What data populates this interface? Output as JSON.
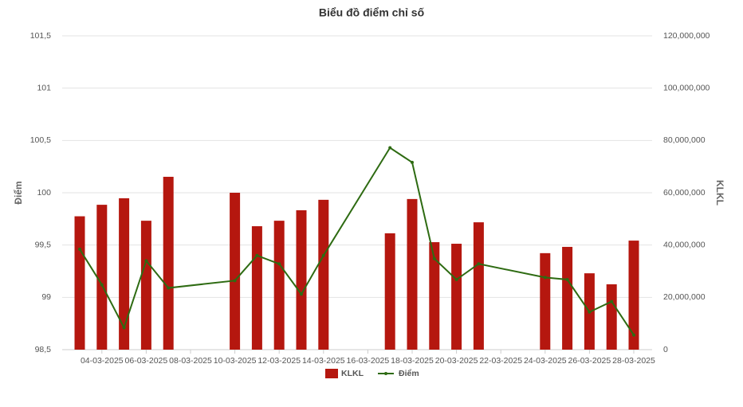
{
  "chart_data": {
    "type": "combo",
    "title": "Biểu đồ điểm chỉ số",
    "ylabel": "Điểm",
    "y2label": "KLKL",
    "x": [
      "03-03-2025",
      "04-03-2025",
      "05-03-2025",
      "06-03-2025",
      "07-03-2025",
      "10-03-2025",
      "11-03-2025",
      "12-03-2025",
      "13-03-2025",
      "14-03-2025",
      "17-03-2025",
      "18-03-2025",
      "19-03-2025",
      "20-03-2025",
      "21-03-2025",
      "24-03-2025",
      "25-03-2025",
      "26-03-2025",
      "27-03-2025",
      "28-03-2025"
    ],
    "xticks": [
      "04-03-2025",
      "06-03-2025",
      "08-03-2025",
      "10-03-2025",
      "12-03-2025",
      "14-03-2025",
      "16-03-2025",
      "18-03-2025",
      "20-03-2025",
      "22-03-2025",
      "24-03-2025",
      "26-03-2025",
      "28-03-2025"
    ],
    "series": [
      {
        "name": "KLKL",
        "type": "bar",
        "axis": "y2",
        "color": "#b5170f",
        "values": [
          51000000,
          55400000,
          57900000,
          49300000,
          66100000,
          60000000,
          47200000,
          49300000,
          53300000,
          57300000,
          44500000,
          57600000,
          41100000,
          40500000,
          48700000,
          36900000,
          39300000,
          29200000,
          25000000,
          41700000
        ]
      },
      {
        "name": "Điểm",
        "type": "line",
        "color": "#2e6b12",
        "values": [
          99.46,
          99.12,
          98.71,
          99.35,
          99.09,
          99.16,
          99.4,
          99.32,
          99.03,
          99.4,
          100.43,
          100.29,
          99.37,
          99.17,
          99.32,
          99.19,
          99.17,
          98.86,
          98.96,
          98.64
        ]
      }
    ],
    "ylim": [
      98.5,
      101.5
    ],
    "yticks": [
      {
        "value": 98.5,
        "label": "98,5"
      },
      99,
      {
        "value": 99.5,
        "label": "99,5"
      },
      100,
      {
        "value": 100.5,
        "label": "100,5"
      },
      101,
      {
        "value": 101.5,
        "label": "101,5"
      }
    ],
    "y2lim": [
      0,
      120000000
    ],
    "y2ticks": [
      0,
      {
        "value": 20000000,
        "label": "20,000,000"
      },
      {
        "value": 40000000,
        "label": "40,000,000"
      },
      {
        "value": 60000000,
        "label": "60,000,000"
      },
      {
        "value": 80000000,
        "label": "80,000,000"
      },
      {
        "value": 100000000,
        "label": "100,000,000"
      },
      {
        "value": 120000000,
        "label": "120,000,000"
      }
    ],
    "grid": true,
    "legend": "bottom"
  }
}
